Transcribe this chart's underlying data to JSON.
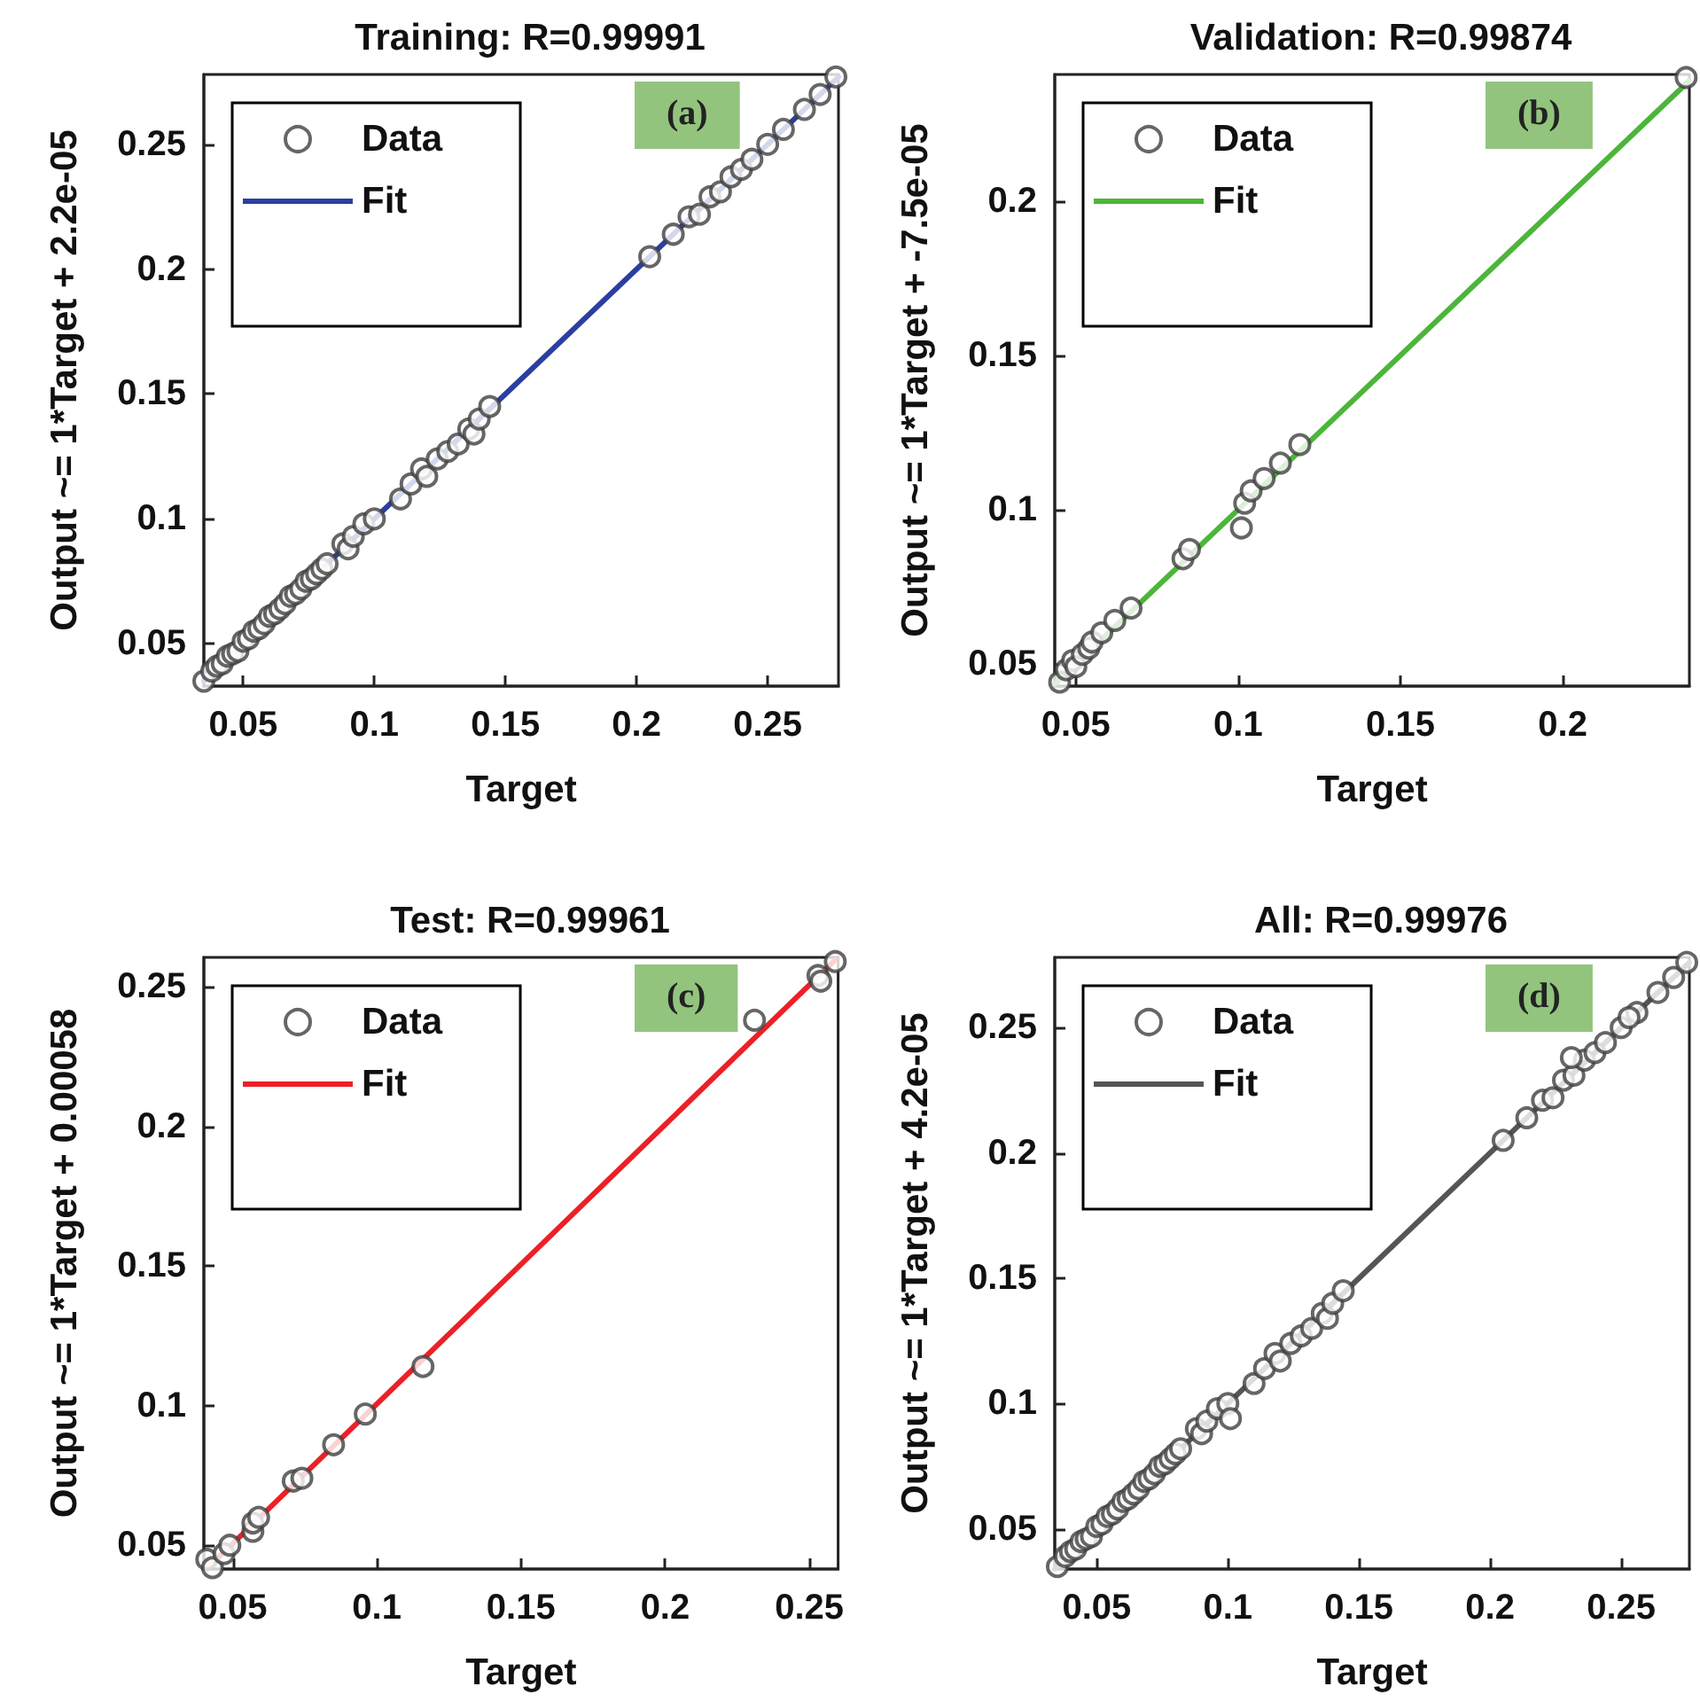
{
  "chart_data": [
    {
      "type": "scatter",
      "title": "Training: R=0.99991",
      "xlabel": "Target",
      "ylabel": "Output ~= 1*Target + 2.2e-05",
      "xlim": [
        0.035,
        0.277
      ],
      "ylim": [
        0.033,
        0.278
      ],
      "xticks": [
        0.05,
        0.1,
        0.15,
        0.2,
        0.25
      ],
      "yticks": [
        0.05,
        0.1,
        0.15,
        0.2,
        0.25
      ],
      "legend": "top left",
      "annotations": [
        "(a)"
      ],
      "series": [
        {
          "name": "Data",
          "color": "#404040",
          "marker": "circle",
          "x": [
            0.035,
            0.038,
            0.04,
            0.042,
            0.044,
            0.046,
            0.048,
            0.05,
            0.052,
            0.054,
            0.056,
            0.058,
            0.06,
            0.062,
            0.064,
            0.066,
            0.068,
            0.07,
            0.072,
            0.074,
            0.076,
            0.078,
            0.08,
            0.082,
            0.088,
            0.09,
            0.092,
            0.096,
            0.1,
            0.11,
            0.114,
            0.118,
            0.12,
            0.124,
            0.128,
            0.132,
            0.136,
            0.138,
            0.14,
            0.144,
            0.205,
            0.214,
            0.22,
            0.224,
            0.228,
            0.232,
            0.236,
            0.24,
            0.244,
            0.25,
            0.256,
            0.264,
            0.27,
            0.276
          ],
          "values": [
            0.035,
            0.039,
            0.041,
            0.042,
            0.045,
            0.046,
            0.047,
            0.051,
            0.052,
            0.055,
            0.056,
            0.058,
            0.061,
            0.062,
            0.064,
            0.066,
            0.069,
            0.07,
            0.072,
            0.075,
            0.076,
            0.078,
            0.08,
            0.082,
            0.09,
            0.088,
            0.093,
            0.098,
            0.1,
            0.108,
            0.114,
            0.12,
            0.117,
            0.124,
            0.127,
            0.13,
            0.136,
            0.134,
            0.14,
            0.145,
            0.205,
            0.214,
            0.221,
            0.222,
            0.229,
            0.231,
            0.237,
            0.24,
            0.244,
            0.25,
            0.256,
            0.264,
            0.27,
            0.277
          ]
        },
        {
          "name": "Fit",
          "type": "line",
          "color": "#2b3f9f",
          "marker": "none",
          "x": [
            0.035,
            0.277
          ],
          "values": [
            0.035,
            0.277
          ]
        }
      ]
    },
    {
      "type": "scatter",
      "title": "Validation: R=0.99874",
      "xlabel": "Target",
      "ylabel": "Output ~= 1*Target + -7.5e-05",
      "xlim": [
        0.0435,
        0.239
      ],
      "ylim": [
        0.0427,
        0.241
      ],
      "xticks": [
        0.05,
        0.1,
        0.15,
        0.2
      ],
      "yticks": [
        0.05,
        0.1,
        0.15,
        0.2
      ],
      "legend": "top left",
      "annotations": [
        "(b)"
      ],
      "series": [
        {
          "name": "Data",
          "color": "#404040",
          "marker": "circle",
          "x": [
            0.045,
            0.047,
            0.049,
            0.05,
            0.052,
            0.054,
            0.055,
            0.058,
            0.062,
            0.067,
            0.083,
            0.085,
            0.101,
            0.102,
            0.104,
            0.108,
            0.113,
            0.119,
            0.238
          ],
          "values": [
            0.044,
            0.048,
            0.051,
            0.049,
            0.053,
            0.055,
            0.057,
            0.06,
            0.064,
            0.068,
            0.084,
            0.087,
            0.094,
            0.102,
            0.106,
            0.11,
            0.115,
            0.121,
            0.24
          ]
        },
        {
          "name": "Fit",
          "type": "line",
          "color": "#4cb53a",
          "marker": "none",
          "x": [
            0.0435,
            0.239
          ],
          "values": [
            0.0434,
            0.239
          ]
        }
      ]
    },
    {
      "type": "scatter",
      "title": "Test: R=0.99961",
      "xlabel": "Target",
      "ylabel": "Output ~= 1*Target + 0.00058",
      "xlim": [
        0.04,
        0.26
      ],
      "ylim": [
        0.0415,
        0.2605
      ],
      "xticks": [
        0.05,
        0.1,
        0.15,
        0.2,
        0.25
      ],
      "yticks": [
        0.05,
        0.1,
        0.15,
        0.2,
        0.25
      ],
      "legend": "top left",
      "annotations": [
        "(c)"
      ],
      "series": [
        {
          "name": "Data",
          "color": "#404040",
          "marker": "circle",
          "x": [
            0.041,
            0.043,
            0.047,
            0.049,
            0.057,
            0.057,
            0.059,
            0.071,
            0.074,
            0.085,
            0.096,
            0.116,
            0.231,
            0.253,
            0.254,
            0.259
          ],
          "values": [
            0.045,
            0.042,
            0.047,
            0.05,
            0.055,
            0.058,
            0.06,
            0.073,
            0.074,
            0.086,
            0.097,
            0.114,
            0.238,
            0.254,
            0.252,
            0.259
          ]
        },
        {
          "name": "Fit",
          "type": "line",
          "color": "#ec2027",
          "marker": "none",
          "x": [
            0.041,
            0.259
          ],
          "values": [
            0.0416,
            0.2596
          ]
        }
      ]
    },
    {
      "type": "scatter",
      "title": "All: R=0.99976",
      "xlabel": "Target",
      "ylabel": "Output ~= 1*Target + 4.2e-05",
      "xlim": [
        0.034,
        0.276
      ],
      "ylim": [
        0.034,
        0.278
      ],
      "xticks": [
        0.05,
        0.1,
        0.15,
        0.2,
        0.25
      ],
      "yticks": [
        0.05,
        0.1,
        0.15,
        0.2,
        0.25
      ],
      "legend": "top left",
      "annotations": [
        "(d)"
      ],
      "series": [
        {
          "name": "Data",
          "color": "#404040",
          "marker": "circle",
          "x": [
            0.035,
            0.038,
            0.04,
            0.042,
            0.044,
            0.046,
            0.048,
            0.05,
            0.052,
            0.054,
            0.056,
            0.058,
            0.06,
            0.062,
            0.064,
            0.066,
            0.068,
            0.07,
            0.072,
            0.074,
            0.076,
            0.078,
            0.08,
            0.082,
            0.088,
            0.09,
            0.092,
            0.096,
            0.1,
            0.11,
            0.114,
            0.118,
            0.12,
            0.124,
            0.128,
            0.132,
            0.136,
            0.138,
            0.14,
            0.144,
            0.205,
            0.214,
            0.22,
            0.224,
            0.228,
            0.232,
            0.236,
            0.24,
            0.244,
            0.25,
            0.256,
            0.264,
            0.27,
            0.275,
            0.101,
            0.231,
            0.253
          ],
          "values": [
            0.035,
            0.039,
            0.041,
            0.042,
            0.045,
            0.046,
            0.047,
            0.051,
            0.052,
            0.055,
            0.056,
            0.058,
            0.061,
            0.062,
            0.064,
            0.066,
            0.069,
            0.07,
            0.072,
            0.075,
            0.076,
            0.078,
            0.08,
            0.082,
            0.09,
            0.088,
            0.093,
            0.098,
            0.1,
            0.108,
            0.114,
            0.12,
            0.117,
            0.124,
            0.127,
            0.13,
            0.136,
            0.134,
            0.14,
            0.145,
            0.205,
            0.214,
            0.221,
            0.222,
            0.229,
            0.231,
            0.237,
            0.24,
            0.244,
            0.25,
            0.256,
            0.264,
            0.27,
            0.276,
            0.094,
            0.238,
            0.254
          ]
        },
        {
          "name": "Fit",
          "type": "line",
          "color": "#555555",
          "marker": "none",
          "x": [
            0.034,
            0.276
          ],
          "values": [
            0.034,
            0.276
          ]
        }
      ]
    }
  ]
}
